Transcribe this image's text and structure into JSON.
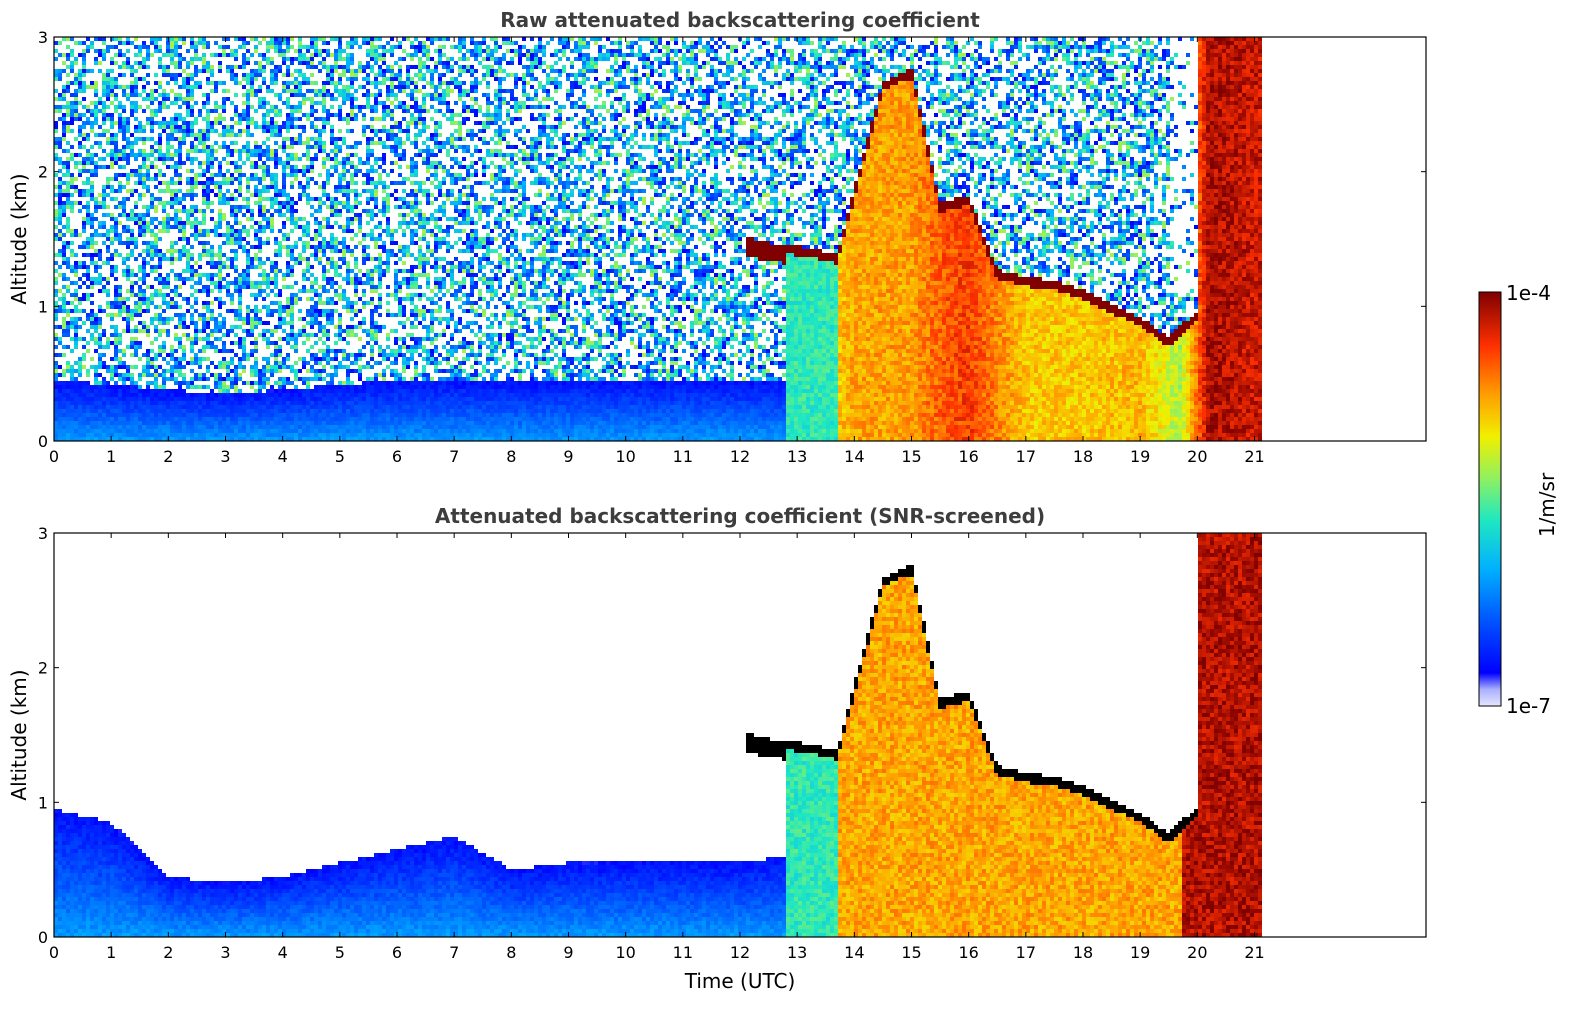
{
  "chart_data": [
    {
      "type": "heatmap",
      "title": "Raw attenuated backscattering coefficient",
      "xlabel": "",
      "ylabel": "Altitude (km)",
      "xlim": [
        0,
        24
      ],
      "ylim": [
        0,
        3
      ],
      "x_ticks": [
        "0",
        "1",
        "2",
        "3",
        "4",
        "5",
        "6",
        "7",
        "8",
        "9",
        "10",
        "11",
        "12",
        "13",
        "14",
        "15",
        "16",
        "17",
        "18",
        "19",
        "20",
        "21"
      ],
      "y_ticks": [
        "0",
        "1",
        "2",
        "3"
      ],
      "data_extent_x": [
        0,
        21.15
      ],
      "screening": "raw",
      "layers": [
        {
          "kind": "boundary_layer",
          "x": [
            0,
            1,
            2,
            3,
            4,
            5,
            6,
            7,
            8,
            9,
            10,
            11,
            12,
            12.8
          ],
          "top_km": [
            0.45,
            0.42,
            0.38,
            0.35,
            0.38,
            0.42,
            0.45,
            0.45,
            0.45,
            0.45,
            0.45,
            0.45,
            0.45,
            0.45
          ]
        },
        {
          "kind": "cloud_base",
          "x": [
            12.1,
            12.5,
            13,
            13.7,
            14.5,
            15,
            15.5,
            16,
            16.5,
            17,
            17.5,
            18,
            18.5,
            19,
            19.5,
            20
          ],
          "alt_km": [
            1.45,
            1.4,
            1.38,
            1.32,
            2.6,
            2.7,
            1.7,
            1.75,
            1.2,
            1.15,
            1.12,
            1.05,
            0.95,
            0.85,
            0.7,
            0.9
          ]
        },
        {
          "kind": "aerosol_column",
          "x": [
            12.8,
            13.7,
            14,
            15,
            15.5,
            16,
            17,
            18,
            19,
            19.7,
            20.2,
            21.15
          ],
          "level": [
            0.48,
            0.7,
            0.74,
            0.75,
            0.82,
            0.86,
            0.7,
            0.7,
            0.72,
            0.58,
            0.96,
            0.92
          ]
        }
      ]
    },
    {
      "type": "heatmap",
      "title": "Attenuated backscattering coefficient (SNR-screened)",
      "xlabel": "Time (UTC)",
      "ylabel": "Altitude (km)",
      "xlim": [
        0,
        24
      ],
      "ylim": [
        0,
        3
      ],
      "x_ticks": [
        "0",
        "1",
        "2",
        "3",
        "4",
        "5",
        "6",
        "7",
        "8",
        "9",
        "10",
        "11",
        "12",
        "13",
        "14",
        "15",
        "16",
        "17",
        "18",
        "19",
        "20",
        "21"
      ],
      "y_ticks": [
        "0",
        "1",
        "2",
        "3"
      ],
      "data_extent_x": [
        0,
        21.15
      ],
      "screening": "snr",
      "layers": [
        {
          "kind": "boundary_layer",
          "x": [
            0,
            1,
            2,
            3,
            4,
            5,
            6,
            7,
            8,
            9,
            10,
            11,
            12,
            12.8
          ],
          "top_km": [
            0.95,
            0.85,
            0.45,
            0.4,
            0.45,
            0.55,
            0.65,
            0.75,
            0.5,
            0.55,
            0.55,
            0.55,
            0.55,
            0.6
          ]
        },
        {
          "kind": "cloud_base",
          "x": [
            12.1,
            12.5,
            13,
            13.7,
            14.5,
            15,
            15.5,
            16,
            16.5,
            17,
            17.5,
            18,
            18.5,
            19,
            19.5,
            20
          ],
          "alt_km": [
            1.45,
            1.4,
            1.38,
            1.32,
            2.6,
            2.7,
            1.7,
            1.75,
            1.2,
            1.15,
            1.12,
            1.05,
            0.95,
            0.85,
            0.7,
            0.9
          ]
        }
      ]
    }
  ],
  "colorbar": {
    "label": "1/m/sr",
    "max_label": "1e-4",
    "min_label": "1e-7",
    "colormap": "jet",
    "scale": "log",
    "range": [
      1e-07,
      0.0001
    ]
  }
}
